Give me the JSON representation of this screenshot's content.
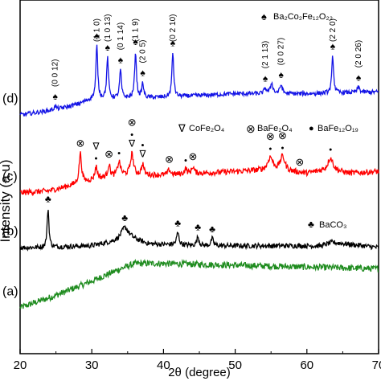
{
  "chart_data": {
    "type": "line",
    "xlabel": "2θ (degree)",
    "ylabel": "Intensity (a.u)",
    "xlim": [
      20,
      70
    ],
    "xticks": [
      "20",
      "30",
      "40",
      "50",
      "60",
      "70"
    ],
    "grid": false,
    "series": [
      {
        "key": "a",
        "label": "(a)",
        "color": "#1f8c1f",
        "baseline": 0.13,
        "noise": 0.009,
        "points": [
          [
            20,
            0.0
          ],
          [
            25,
            0.035
          ],
          [
            30,
            0.075
          ],
          [
            34,
            0.11
          ],
          [
            36,
            0.125
          ],
          [
            40,
            0.125
          ],
          [
            50,
            0.12
          ],
          [
            60,
            0.115
          ],
          [
            70,
            0.11
          ]
        ],
        "peaks": []
      },
      {
        "key": "b",
        "label": "(b)",
        "color": "#000000",
        "baseline": 0.3,
        "noise": 0.007,
        "points": [
          [
            20,
            0.0
          ],
          [
            23,
            0.0
          ],
          [
            30,
            0.005
          ],
          [
            34,
            0.02
          ],
          [
            35.5,
            0.025
          ],
          [
            38,
            0.01
          ],
          [
            45,
            0.005
          ],
          [
            62,
            0.005
          ],
          [
            63.5,
            0.015
          ],
          [
            70,
            0.0
          ]
        ],
        "peaks": [
          {
            "x": 23.9,
            "h": 0.11,
            "w": 0.15
          },
          {
            "x": 34.6,
            "h": 0.035,
            "w": 0.6
          },
          {
            "x": 42.0,
            "h": 0.035,
            "w": 0.2
          },
          {
            "x": 44.8,
            "h": 0.025,
            "w": 0.2
          },
          {
            "x": 46.8,
            "h": 0.02,
            "w": 0.2
          }
        ]
      },
      {
        "key": "c",
        "label": "(c)",
        "color": "#ff0000",
        "baseline": 0.455,
        "noise": 0.008,
        "points": [
          [
            20,
            0.0
          ],
          [
            24,
            0.005
          ],
          [
            27,
            0.02
          ],
          [
            31,
            0.04
          ],
          [
            35,
            0.05
          ],
          [
            40,
            0.05
          ],
          [
            45,
            0.055
          ],
          [
            55,
            0.065
          ],
          [
            60,
            0.055
          ],
          [
            63,
            0.065
          ],
          [
            66,
            0.055
          ],
          [
            70,
            0.06
          ]
        ],
        "peaks": [
          {
            "x": 28.4,
            "h": 0.085,
            "w": 0.2
          },
          {
            "x": 30.6,
            "h": 0.035,
            "w": 0.2
          },
          {
            "x": 32.4,
            "h": 0.035,
            "w": 0.2
          },
          {
            "x": 33.8,
            "h": 0.04,
            "w": 0.25
          },
          {
            "x": 35.6,
            "h": 0.06,
            "w": 0.25
          },
          {
            "x": 37.1,
            "h": 0.03,
            "w": 0.2
          },
          {
            "x": 40.8,
            "h": 0.015,
            "w": 0.2
          },
          {
            "x": 43.1,
            "h": 0.015,
            "w": 0.2
          },
          {
            "x": 44.1,
            "h": 0.02,
            "w": 0.2
          },
          {
            "x": 54.9,
            "h": 0.035,
            "w": 0.4
          },
          {
            "x": 56.6,
            "h": 0.04,
            "w": 0.4
          },
          {
            "x": 63.3,
            "h": 0.035,
            "w": 0.4
          }
        ]
      },
      {
        "key": "d",
        "label": "(d)",
        "color": "#1414e6",
        "baseline": 0.675,
        "noise": 0.006,
        "points": [
          [
            20,
            0.0
          ],
          [
            25,
            0.015
          ],
          [
            28,
            0.03
          ],
          [
            30,
            0.045
          ],
          [
            40,
            0.05
          ],
          [
            50,
            0.06
          ],
          [
            60,
            0.06
          ],
          [
            70,
            0.065
          ]
        ],
        "peaks": [
          {
            "x": 24.9,
            "h": 0.01,
            "w": 0.2
          },
          {
            "x": 30.7,
            "h": 0.15,
            "w": 0.15
          },
          {
            "x": 32.2,
            "h": 0.115,
            "w": 0.15
          },
          {
            "x": 34.0,
            "h": 0.08,
            "w": 0.15
          },
          {
            "x": 36.1,
            "h": 0.13,
            "w": 0.15
          },
          {
            "x": 37.1,
            "h": 0.04,
            "w": 0.15
          },
          {
            "x": 41.3,
            "h": 0.125,
            "w": 0.15
          },
          {
            "x": 54.2,
            "h": 0.015,
            "w": 0.2
          },
          {
            "x": 55.1,
            "h": 0.03,
            "w": 0.2
          },
          {
            "x": 56.4,
            "h": 0.025,
            "w": 0.2
          },
          {
            "x": 63.6,
            "h": 0.105,
            "w": 0.15
          },
          {
            "x": 67.2,
            "h": 0.015,
            "w": 0.2
          }
        ]
      }
    ],
    "annotations": [
      {
        "series": "d",
        "text": "(0 0 12)",
        "x": 24.9
      },
      {
        "series": "d",
        "text": "(1 1 0)",
        "x": 30.7
      },
      {
        "series": "d",
        "text": "(1 0 13)",
        "x": 32.2
      },
      {
        "series": "d",
        "text": "(0 1 14)",
        "x": 34.0
      },
      {
        "series": "d",
        "text": "(1 1 9)",
        "x": 36.1
      },
      {
        "series": "d",
        "text": "(2 0 5)",
        "x": 37.1
      },
      {
        "series": "d",
        "text": "(0 2 10)",
        "x": 41.3
      },
      {
        "series": "d",
        "text": "(2 1 13)",
        "x": 54.2
      },
      {
        "series": "d",
        "text": "(0 0 27)",
        "x": 56.4
      },
      {
        "series": "d",
        "text": "(2 2 0)",
        "x": 63.6
      },
      {
        "series": "d",
        "text": "(2 0 26)",
        "x": 67.2
      }
    ],
    "markers": [
      {
        "series": "d",
        "symbol": "spade",
        "x": 24.9
      },
      {
        "series": "d",
        "symbol": "spade",
        "x": 30.7
      },
      {
        "series": "d",
        "symbol": "spade",
        "x": 32.2
      },
      {
        "series": "d",
        "symbol": "spade",
        "x": 34.0
      },
      {
        "series": "d",
        "symbol": "spade",
        "x": 36.1
      },
      {
        "series": "d",
        "symbol": "spade",
        "x": 37.1
      },
      {
        "series": "d",
        "symbol": "spade",
        "x": 41.3
      },
      {
        "series": "d",
        "symbol": "spade",
        "x": 54.2
      },
      {
        "series": "d",
        "symbol": "spade",
        "x": 56.4
      },
      {
        "series": "d",
        "symbol": "spade",
        "x": 63.6
      },
      {
        "series": "d",
        "symbol": "spade",
        "x": 67.2
      },
      {
        "series": "c",
        "symbol": "otimes",
        "x": 28.4
      },
      {
        "series": "c",
        "symbol": "dot",
        "x": 30.6
      },
      {
        "series": "c",
        "symbol": "triangle",
        "x": 30.6
      },
      {
        "series": "c",
        "symbol": "otimes",
        "x": 32.4
      },
      {
        "series": "c",
        "symbol": "dot",
        "x": 33.8
      },
      {
        "series": "c",
        "symbol": "triangle",
        "x": 35.6
      },
      {
        "series": "c",
        "symbol": "dot",
        "x": 35.6
      },
      {
        "series": "c",
        "symbol": "otimes",
        "x": 35.6
      },
      {
        "series": "c",
        "symbol": "triangle",
        "x": 37.1
      },
      {
        "series": "c",
        "symbol": "dot",
        "x": 37.1
      },
      {
        "series": "c",
        "symbol": "otimes",
        "x": 40.8
      },
      {
        "series": "c",
        "symbol": "dot",
        "x": 43.1
      },
      {
        "series": "c",
        "symbol": "otimes",
        "x": 44.1
      },
      {
        "series": "c",
        "symbol": "dot",
        "x": 54.9
      },
      {
        "series": "c",
        "symbol": "otimes",
        "x": 54.9
      },
      {
        "series": "c",
        "symbol": "dot",
        "x": 56.6
      },
      {
        "series": "c",
        "symbol": "otimes",
        "x": 56.6
      },
      {
        "series": "c",
        "symbol": "otimes",
        "x": 59.0
      },
      {
        "series": "c",
        "symbol": "dot",
        "x": 63.3
      },
      {
        "series": "b",
        "symbol": "club",
        "x": 23.9
      },
      {
        "series": "b",
        "symbol": "club",
        "x": 34.6
      },
      {
        "series": "b",
        "symbol": "club",
        "x": 42.0
      },
      {
        "series": "b",
        "symbol": "club",
        "x": 44.8
      },
      {
        "series": "b",
        "symbol": "club",
        "x": 46.8
      }
    ],
    "legends": [
      {
        "symbol": "spade",
        "text": "Ba₂Co₂Fe₁₂O₂₂"
      },
      {
        "symbol": "triangle",
        "text": "CoFe₂O₄"
      },
      {
        "symbol": "otimes",
        "text": "BaFe₂O₄"
      },
      {
        "symbol": "dot",
        "text": "BaFe₁₂O₁₉"
      },
      {
        "symbol": "club",
        "text": "BaCO₃"
      }
    ]
  }
}
